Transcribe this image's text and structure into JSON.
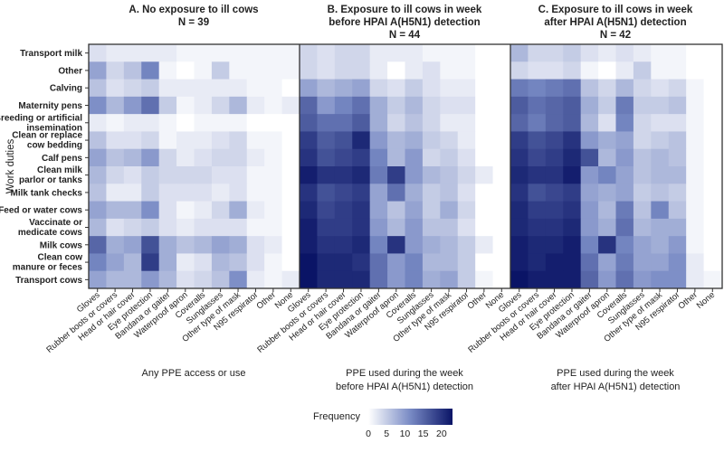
{
  "chart_data": {
    "type": "heatmap",
    "ylabel": "Work duties",
    "rows": [
      "Transport milk",
      "Other",
      "Calving",
      "Maternity pens",
      "Breeding or artificial\ninsemination",
      "Clean or replace\ncow bedding",
      "Calf pens",
      "Clean milk\nparlor or tanks",
      "Milk tank checks",
      "Feed or water cows",
      "Vaccinate or\nmedicate cows",
      "Milk cows",
      "Clean cow\nmanure or feces",
      "Transport cows"
    ],
    "columns": [
      "Gloves",
      "Rubber boots or covers",
      "Head or hair cover",
      "Eye protection",
      "Bandana or gaiter",
      "Waterproof apron",
      "Coveralls",
      "Sunglasses",
      "Other type of mask",
      "N95 respirator",
      "Other",
      "None"
    ],
    "colorbar": {
      "title": "Frequency",
      "ticks": [
        0,
        5,
        10,
        15,
        20
      ],
      "range": [
        0,
        23
      ],
      "low_color": "#ffffff",
      "high_color": "#0a1466"
    },
    "panels": [
      {
        "title_line1": "A. No exposure to ill cows",
        "title_line2": "N = 39",
        "caption_line1": "Any PPE access or use",
        "caption_line2": "",
        "values": [
          [
            3,
            2,
            2,
            2,
            2,
            1,
            1,
            1,
            1,
            1,
            1,
            1
          ],
          [
            9,
            4,
            6,
            12,
            1,
            0,
            1,
            5,
            1,
            1,
            1,
            1
          ],
          [
            6,
            3,
            4,
            5,
            2,
            2,
            2,
            2,
            2,
            1,
            1,
            0
          ],
          [
            11,
            7,
            10,
            14,
            5,
            1,
            2,
            4,
            7,
            2,
            1,
            2
          ],
          [
            2,
            1,
            2,
            2,
            1,
            0,
            1,
            1,
            1,
            0,
            0,
            0
          ],
          [
            6,
            3,
            3,
            4,
            1,
            2,
            2,
            3,
            4,
            1,
            1,
            0
          ],
          [
            9,
            6,
            7,
            10,
            4,
            2,
            3,
            4,
            4,
            2,
            1,
            0
          ],
          [
            7,
            4,
            3,
            5,
            4,
            4,
            4,
            3,
            3,
            1,
            1,
            0
          ],
          [
            6,
            2,
            2,
            5,
            3,
            3,
            3,
            2,
            3,
            1,
            1,
            0
          ],
          [
            9,
            7,
            7,
            11,
            3,
            1,
            2,
            4,
            8,
            2,
            1,
            0
          ],
          [
            7,
            3,
            4,
            5,
            3,
            2,
            3,
            3,
            3,
            1,
            1,
            0
          ],
          [
            15,
            8,
            9,
            17,
            8,
            6,
            7,
            9,
            8,
            3,
            2,
            0
          ],
          [
            12,
            9,
            7,
            19,
            8,
            2,
            3,
            7,
            6,
            3,
            1,
            0
          ],
          [
            9,
            7,
            7,
            10,
            7,
            3,
            4,
            6,
            11,
            2,
            1,
            2
          ]
        ]
      },
      {
        "title_line1": "B. Exposure to ill cows in week",
        "title_line2": "before HPAI A(H5N1) detection",
        "title_line3": "N = 44",
        "caption_line1": "PPE used during the week",
        "caption_line2": "before HPAI A(H5N1) detection",
        "values": [
          [
            4,
            3,
            4,
            4,
            2,
            2,
            2,
            1,
            1,
            1,
            0,
            0
          ],
          [
            4,
            3,
            4,
            4,
            2,
            0,
            2,
            3,
            1,
            1,
            0,
            0
          ],
          [
            9,
            7,
            8,
            9,
            4,
            3,
            5,
            3,
            2,
            2,
            0,
            0
          ],
          [
            15,
            10,
            12,
            14,
            8,
            5,
            7,
            4,
            3,
            3,
            0,
            0
          ],
          [
            16,
            14,
            14,
            16,
            8,
            4,
            6,
            4,
            2,
            2,
            0,
            0
          ],
          [
            19,
            16,
            17,
            21,
            10,
            7,
            8,
            5,
            4,
            2,
            0,
            0
          ],
          [
            20,
            17,
            18,
            19,
            12,
            7,
            10,
            4,
            5,
            3,
            0,
            0
          ],
          [
            22,
            20,
            20,
            21,
            13,
            19,
            10,
            7,
            6,
            4,
            2,
            0
          ],
          [
            20,
            17,
            18,
            19,
            9,
            14,
            8,
            5,
            6,
            3,
            0,
            0
          ],
          [
            21,
            18,
            19,
            20,
            9,
            6,
            9,
            5,
            8,
            4,
            0,
            0
          ],
          [
            22,
            19,
            19,
            20,
            10,
            7,
            10,
            6,
            6,
            3,
            0,
            0
          ],
          [
            22,
            20,
            20,
            21,
            12,
            20,
            10,
            8,
            7,
            5,
            2,
            0
          ],
          [
            23,
            21,
            21,
            20,
            14,
            10,
            12,
            7,
            7,
            5,
            0,
            0
          ],
          [
            23,
            21,
            21,
            21,
            14,
            10,
            12,
            8,
            9,
            5,
            1,
            0
          ]
        ]
      },
      {
        "title_line1": "C. Exposure to ill cows in week",
        "title_line2": "after HPAI A(H5N1) detection",
        "title_line3": "N = 42",
        "caption_line1": "PPE used during the week",
        "caption_line2": "after HPAI A(H5N1) detection",
        "values": [
          [
            7,
            4,
            4,
            5,
            3,
            2,
            3,
            2,
            1,
            1,
            0,
            0
          ],
          [
            4,
            3,
            3,
            4,
            1,
            0,
            2,
            5,
            1,
            1,
            0,
            0
          ],
          [
            13,
            12,
            13,
            14,
            6,
            4,
            7,
            4,
            3,
            4,
            1,
            0
          ],
          [
            16,
            14,
            15,
            16,
            8,
            5,
            13,
            5,
            5,
            6,
            1,
            0
          ],
          [
            15,
            13,
            15,
            16,
            7,
            3,
            12,
            4,
            3,
            3,
            1,
            0
          ],
          [
            19,
            17,
            18,
            20,
            10,
            8,
            9,
            4,
            5,
            6,
            1,
            0
          ],
          [
            20,
            18,
            19,
            21,
            17,
            7,
            10,
            6,
            7,
            6,
            1,
            0
          ],
          [
            21,
            20,
            20,
            22,
            10,
            12,
            9,
            6,
            7,
            7,
            1,
            0
          ],
          [
            20,
            17,
            18,
            19,
            9,
            8,
            9,
            5,
            6,
            5,
            1,
            0
          ],
          [
            21,
            19,
            19,
            20,
            10,
            7,
            13,
            6,
            12,
            6,
            1,
            0
          ],
          [
            21,
            20,
            20,
            21,
            10,
            8,
            14,
            7,
            8,
            8,
            1,
            0
          ],
          [
            22,
            21,
            21,
            22,
            12,
            20,
            12,
            9,
            8,
            10,
            1,
            0
          ],
          [
            22,
            21,
            22,
            22,
            14,
            9,
            13,
            9,
            9,
            11,
            2,
            0
          ],
          [
            23,
            22,
            22,
            22,
            15,
            10,
            14,
            10,
            11,
            11,
            2,
            1
          ]
        ]
      }
    ]
  }
}
